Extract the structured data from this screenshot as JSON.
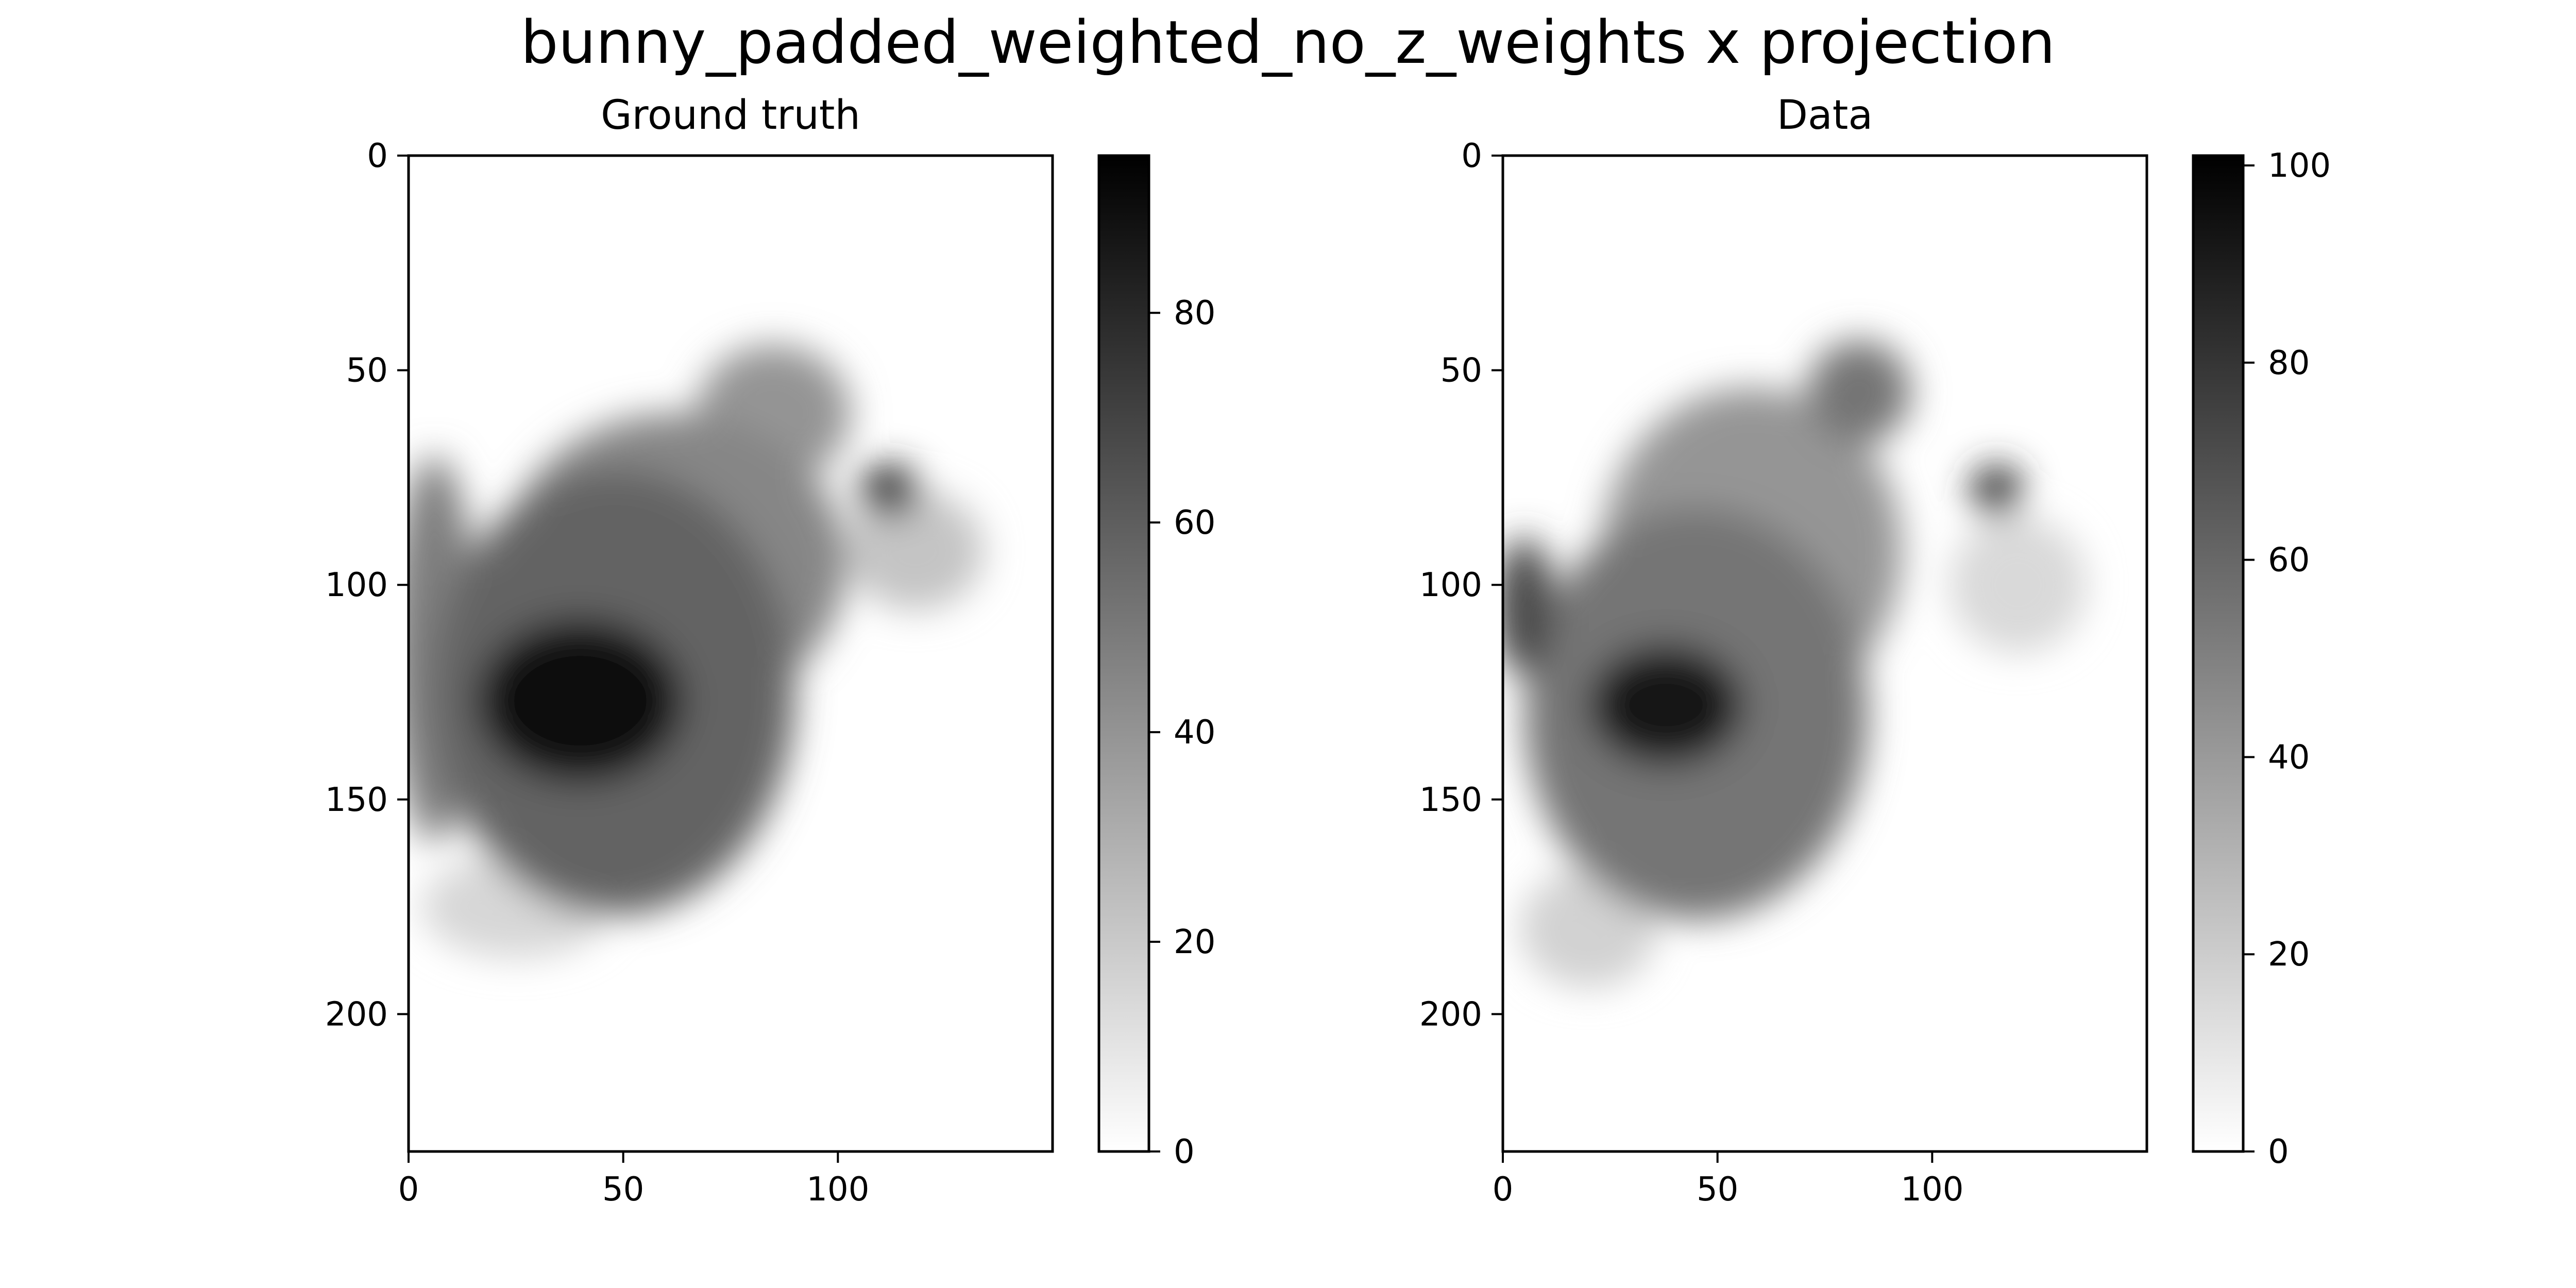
{
  "figure": {
    "suptitle": "bunny_padded_weighted_no_z_weights x projection"
  },
  "chart_data": [
    {
      "type": "heatmap",
      "title": "Ground truth",
      "colormap": "gray_r",
      "x_extent": [
        0,
        150
      ],
      "y_extent": [
        0,
        232
      ],
      "y_inverted": true,
      "x_ticks": [
        0,
        50,
        100
      ],
      "y_ticks": [
        0,
        50,
        100,
        150,
        200
      ],
      "colorbar": {
        "vmin": 0,
        "vmax": 95,
        "ticks": [
          0,
          20,
          40,
          60,
          80
        ]
      },
      "approx_regions": [
        {
          "cx": 40,
          "cy": 127,
          "rx": 24,
          "ry": 19,
          "value": 90
        },
        {
          "cx": 48,
          "cy": 125,
          "rx": 42,
          "ry": 52,
          "value": 58
        },
        {
          "cx": 62,
          "cy": 95,
          "rx": 40,
          "ry": 35,
          "value": 45
        },
        {
          "cx": 85,
          "cy": 60,
          "rx": 18,
          "ry": 16,
          "value": 40
        },
        {
          "cx": 112,
          "cy": 78,
          "rx": 7,
          "ry": 6,
          "value": 78
        },
        {
          "cx": 118,
          "cy": 92,
          "rx": 16,
          "ry": 14,
          "value": 22
        },
        {
          "cx": 6,
          "cy": 115,
          "rx": 10,
          "ry": 45,
          "value": 48
        },
        {
          "cx": 25,
          "cy": 175,
          "rx": 22,
          "ry": 12,
          "value": 15
        }
      ]
    },
    {
      "type": "heatmap",
      "title": "Data",
      "colormap": "gray_r",
      "x_extent": [
        0,
        150
      ],
      "y_extent": [
        0,
        232
      ],
      "y_inverted": true,
      "x_ticks": [
        0,
        50,
        100
      ],
      "y_ticks": [
        0,
        50,
        100,
        150,
        200
      ],
      "colorbar": {
        "vmin": 0,
        "vmax": 101,
        "ticks": [
          0,
          20,
          40,
          60,
          80,
          100
        ]
      },
      "approx_regions": [
        {
          "cx": 38,
          "cy": 128,
          "rx": 18,
          "ry": 14,
          "value": 92
        },
        {
          "cx": 45,
          "cy": 130,
          "rx": 40,
          "ry": 48,
          "value": 55
        },
        {
          "cx": 58,
          "cy": 92,
          "rx": 35,
          "ry": 38,
          "value": 42
        },
        {
          "cx": 83,
          "cy": 55,
          "rx": 12,
          "ry": 12,
          "value": 55
        },
        {
          "cx": 115,
          "cy": 78,
          "rx": 6,
          "ry": 6,
          "value": 80
        },
        {
          "cx": 5,
          "cy": 105,
          "rx": 7,
          "ry": 16,
          "value": 72
        },
        {
          "cx": 120,
          "cy": 100,
          "rx": 16,
          "ry": 16,
          "value": 15
        },
        {
          "cx": 20,
          "cy": 180,
          "rx": 16,
          "ry": 14,
          "value": 18
        }
      ]
    }
  ]
}
